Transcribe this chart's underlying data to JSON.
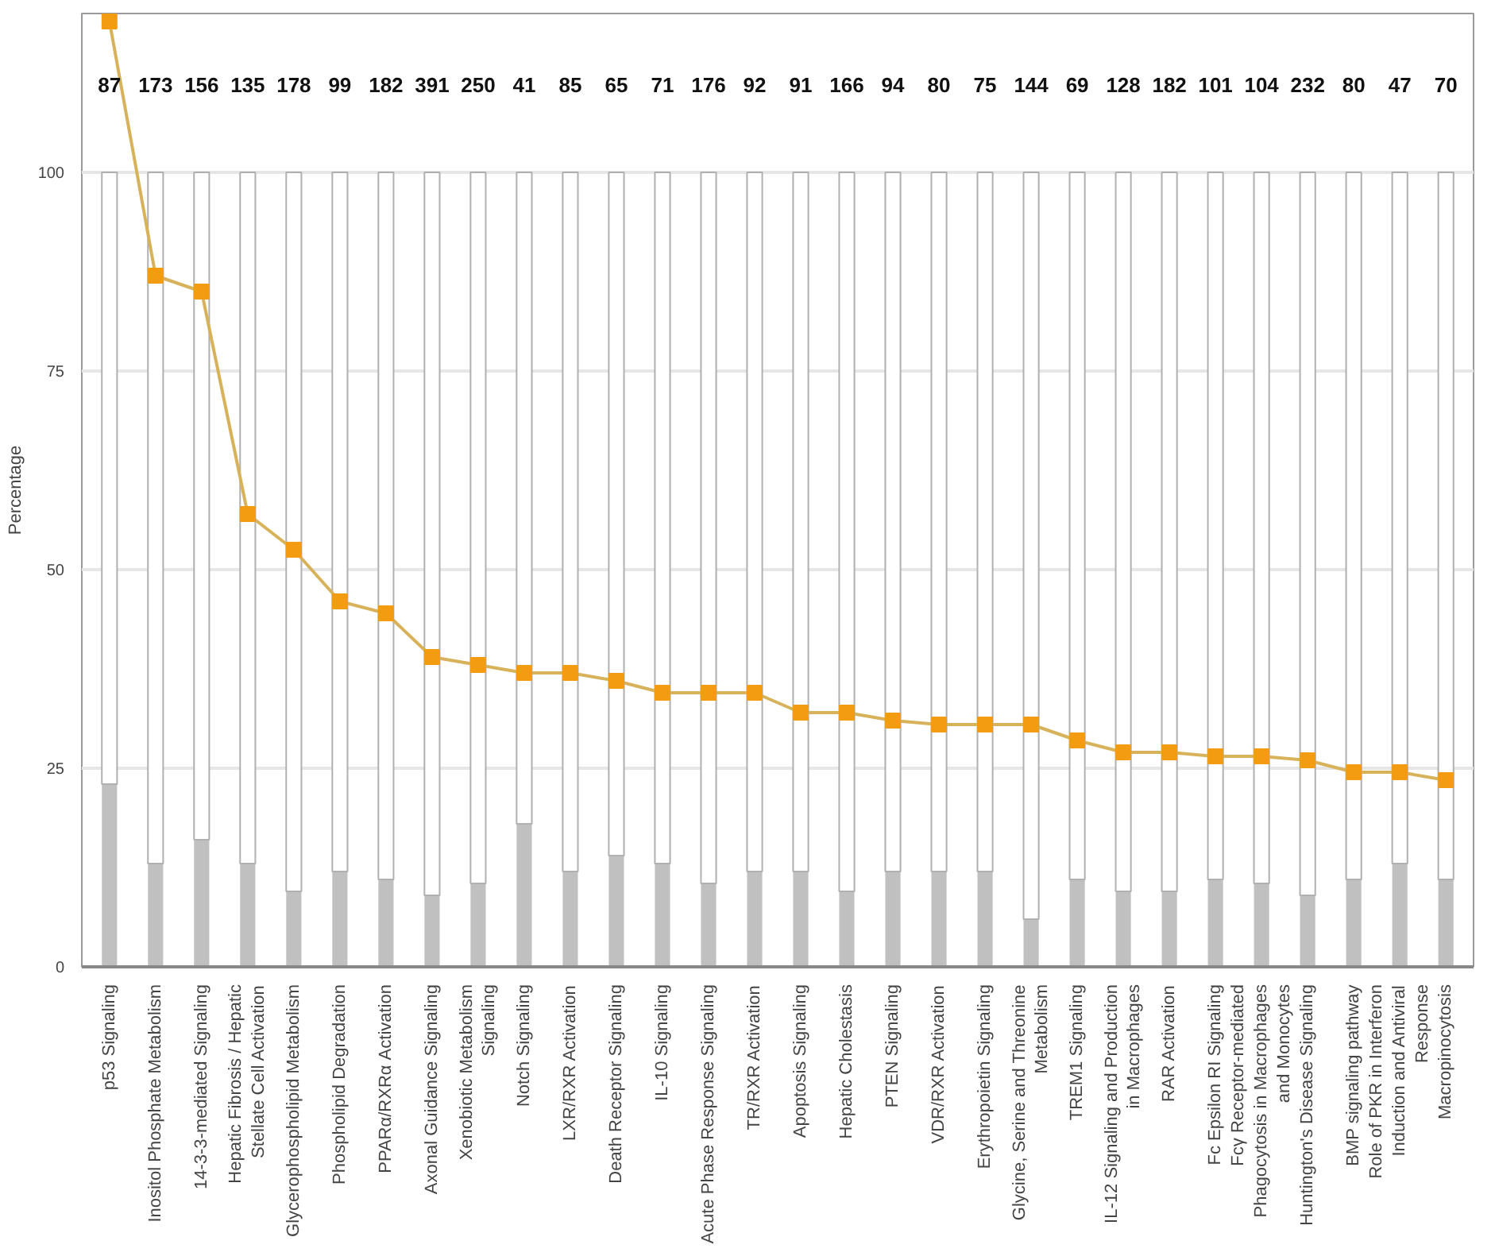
{
  "chart_data": {
    "type": "bar",
    "stacked": true,
    "ylabel": "Percentage",
    "categories": [
      "p53 Signaling",
      "Inositol Phosphate Metabolism",
      "14-3-3-mediated Signaling",
      "Hepatic Fibrosis / Hepatic Stellate Cell Activation",
      "Glycerophospholipid Metabolism",
      "Phospholipid Degradation",
      "PPARα/RXRα Activation",
      "Axonal Guidance Signaling",
      "Xenobiotic Metabolism Signaling",
      "Notch Signaling",
      "LXR/RXR Activation",
      "Death Receptor Signaling",
      "IL-10 Signaling",
      "Acute Phase Response Signaling",
      "TR/RXR Activation",
      "Apoptosis Signaling",
      "Hepatic Cholestasis",
      "PTEN Signaling",
      "VDR/RXR Activation",
      "Erythropoietin Signaling",
      "Glycine, Serine and Threonine Metabolism",
      "TREM1 Signaling",
      "IL-12 Signaling and Production in Macrophages",
      "RAR Activation",
      "Fc Epsilon RI Signaling",
      "Fcγ Receptor-mediated Phagocytosis in Macrophages and Monocytes",
      "Huntington's Disease Signaling",
      "BMP signaling pathway",
      "Role of PKR in Interferon Induction and Antiviral Response",
      "Macropinocytosis"
    ],
    "series": [
      {
        "color": "#c0c0c0",
        "values": [
          23,
          13,
          16,
          13,
          9.5,
          12,
          11,
          9,
          10.5,
          18,
          12,
          14,
          13,
          10.5,
          12,
          12,
          9.5,
          12,
          12,
          12,
          6,
          11,
          9.5,
          9.5,
          11,
          10.5,
          9,
          11,
          13,
          11
        ]
      },
      {
        "color": "#ffffff",
        "values": [
          77,
          87,
          84,
          87,
          90.5,
          88,
          89,
          91,
          89.5,
          82,
          88,
          86,
          87,
          89.5,
          88,
          88,
          90.5,
          88,
          88,
          88,
          94,
          89,
          90.5,
          90.5,
          89,
          89.5,
          91,
          89,
          87,
          89
        ]
      },
      {
        "type": "line",
        "color": "#f39c12",
        "marker": "square",
        "values": [
          119,
          87,
          85,
          57,
          52.5,
          46,
          44.5,
          39,
          38,
          37,
          37,
          36,
          34.5,
          34.5,
          34.5,
          32,
          32,
          31,
          30.5,
          30.5,
          30.5,
          28.5,
          27,
          27,
          26.5,
          26.5,
          26,
          24.5,
          24.5,
          23.5
        ]
      }
    ],
    "annotations": [
      "87",
      "173",
      "156",
      "135",
      "178",
      "99",
      "182",
      "391",
      "250",
      "41",
      "85",
      "65",
      "71",
      "176",
      "92",
      "91",
      "166",
      "94",
      "80",
      "75",
      "144",
      "69",
      "128",
      "182",
      "101",
      "104",
      "232",
      "80",
      "47",
      "70"
    ],
    "ylim": [
      0,
      120
    ],
    "yticks": [
      0,
      25,
      50,
      75,
      100
    ],
    "grid": "y"
  }
}
